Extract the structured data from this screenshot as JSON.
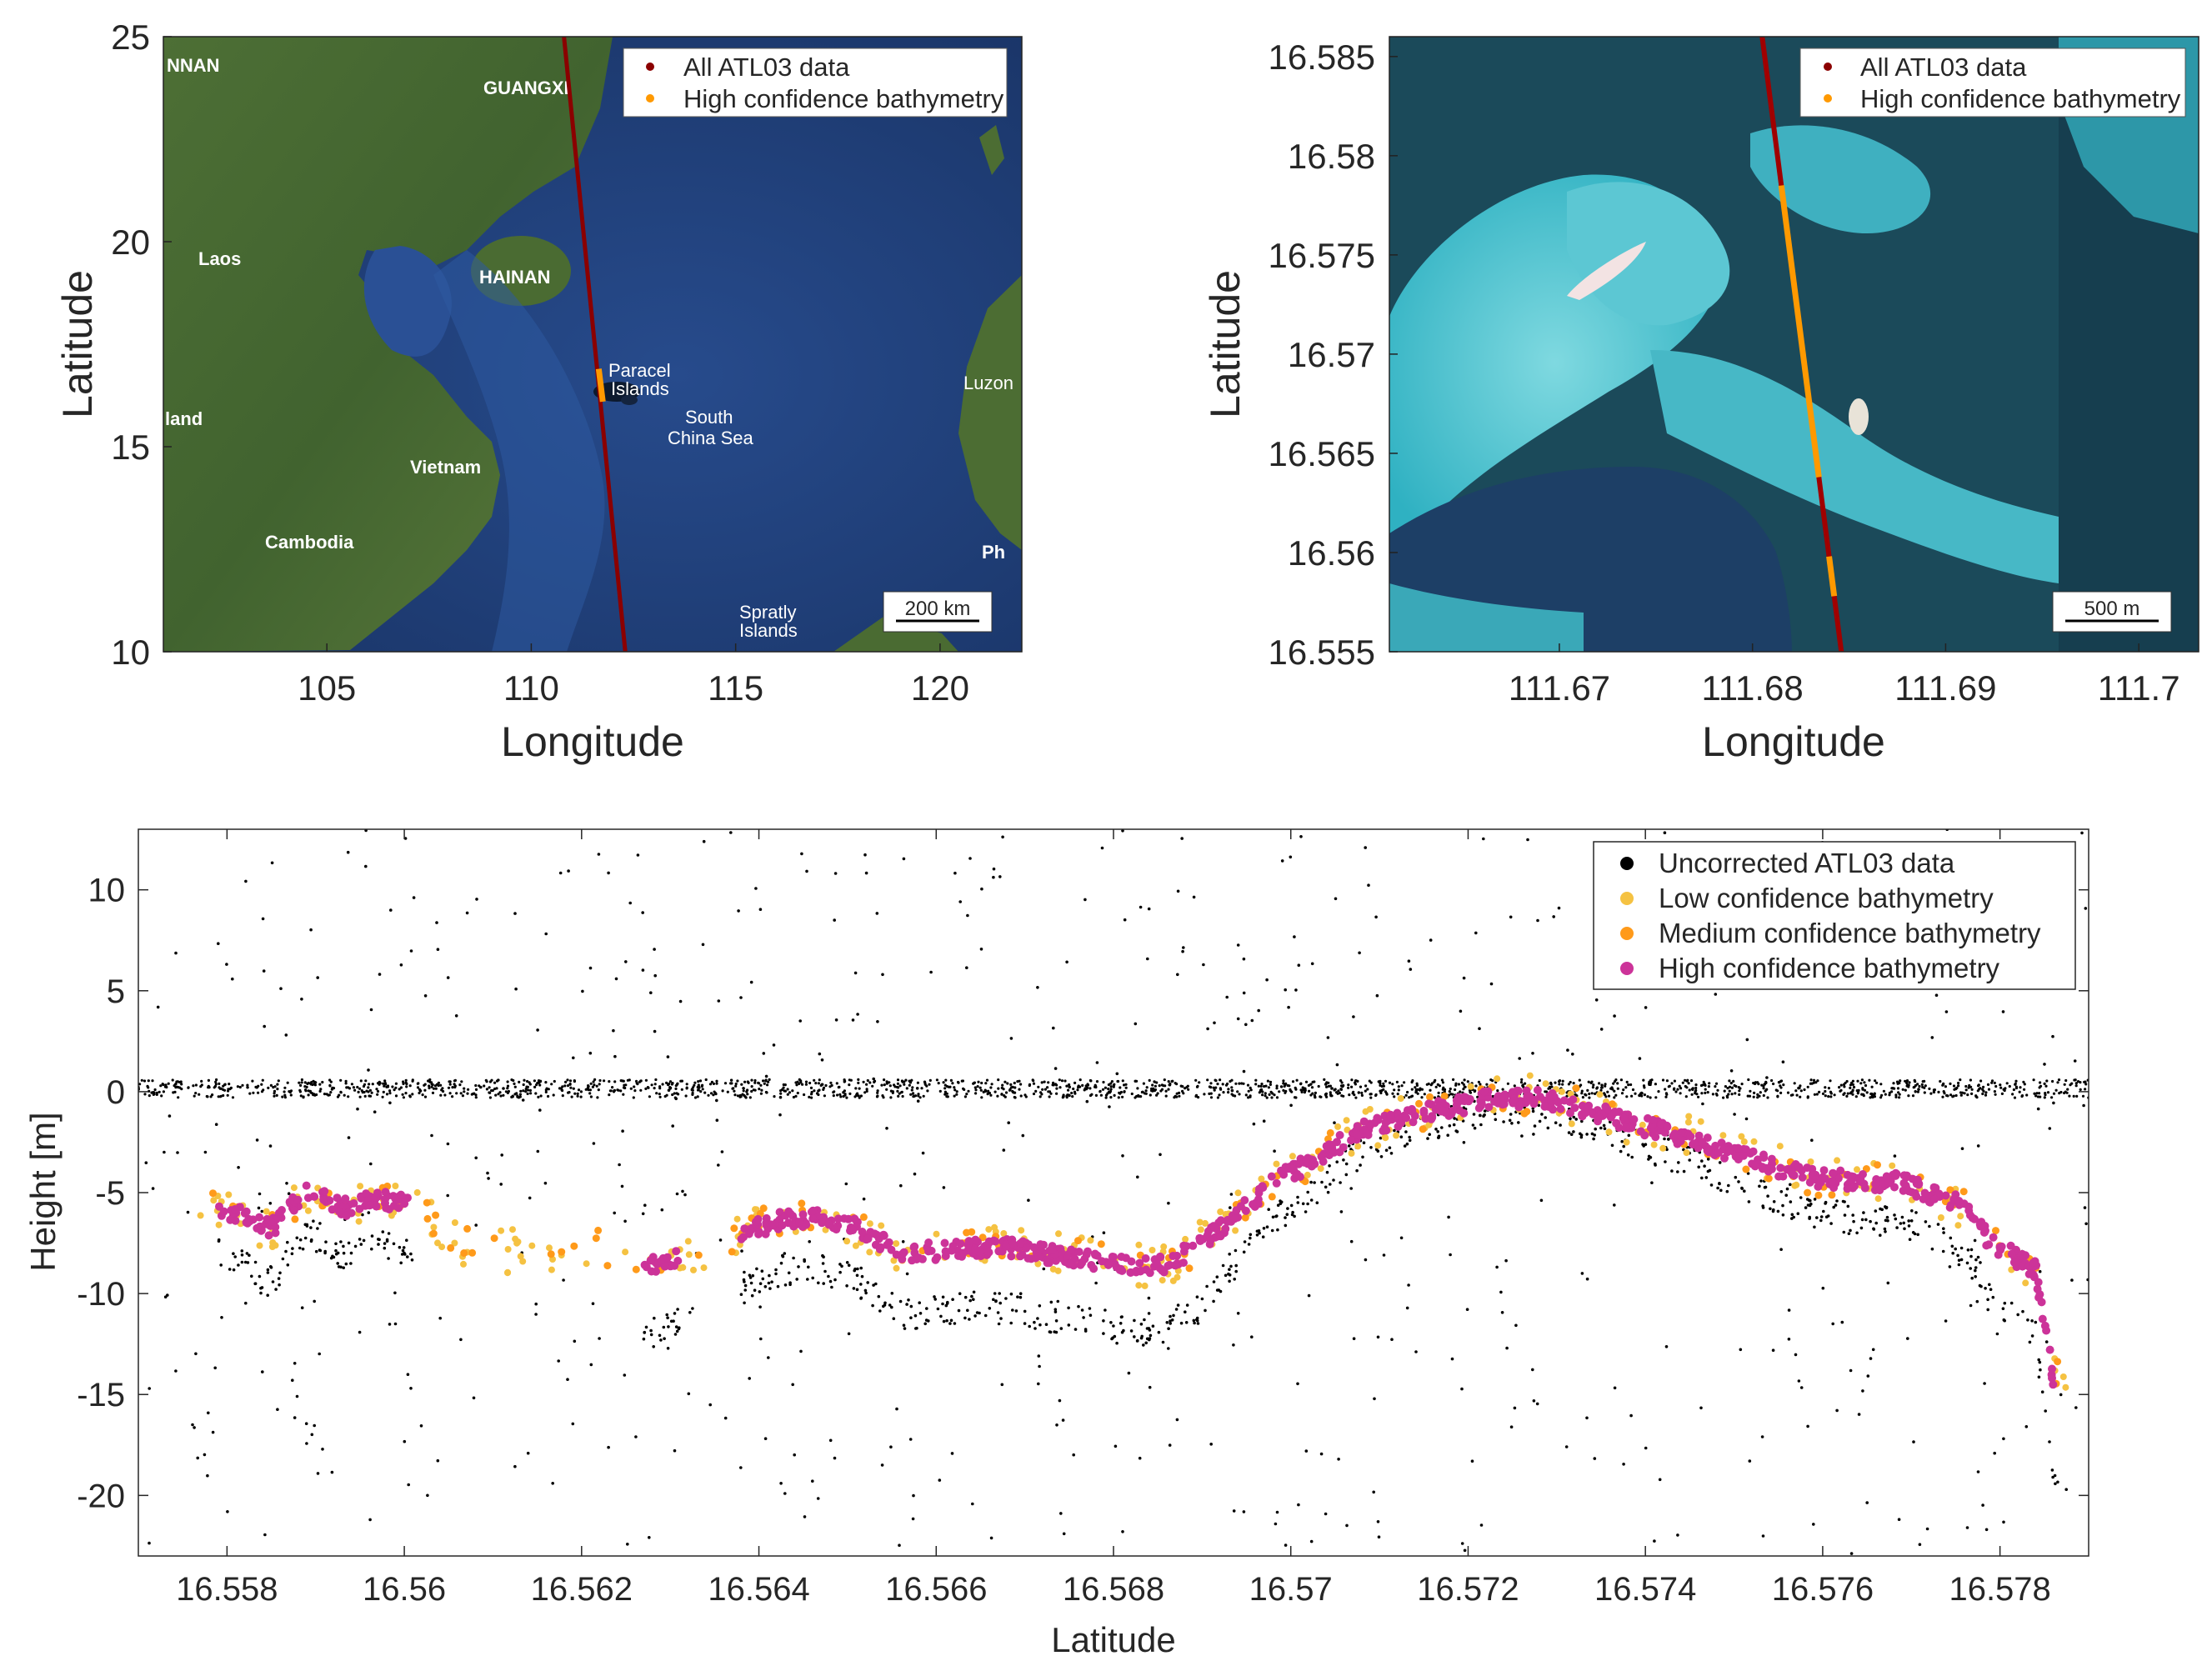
{
  "chart_data": [
    {
      "type": "scatter",
      "panel": "top-left map",
      "xlabel": "Longitude",
      "ylabel": "Latitude",
      "xlim": [
        101,
        122
      ],
      "ylim": [
        10,
        25
      ],
      "x_ticks": [
        "105",
        "110",
        "115",
        "120"
      ],
      "y_ticks": [
        "10",
        "15",
        "20",
        "25"
      ],
      "legend": [
        "All ATL03 data",
        "High confidence bathymetry"
      ],
      "legend_position": "top-right",
      "scale_bar": "200 km",
      "place_labels": [
        "NNAN",
        "GUANGXI",
        "Laos",
        "HAINAN",
        "Paracel",
        "Islands",
        "South",
        "China Sea",
        "Luzon",
        "land",
        "Vietnam",
        "Cambodia",
        "Ph",
        "Spratly",
        "Islands"
      ],
      "series": [
        {
          "name": "All ATL03 data",
          "color": "#8b0000",
          "x": [
            110.8,
            112.3
          ],
          "y": [
            25,
            10
          ]
        },
        {
          "name": "High confidence bathymetry",
          "color": "#ff9900",
          "x": [
            111.65,
            111.75
          ],
          "y": [
            16.9,
            16.1
          ]
        }
      ],
      "background": "satellite imagery"
    },
    {
      "type": "scatter",
      "panel": "top-right map",
      "xlabel": "Longitude",
      "ylabel": "Latitude",
      "xlim": [
        111.6612,
        111.7031
      ],
      "ylim": [
        16.555,
        16.586
      ],
      "x_ticks": [
        "111.67",
        "111.68",
        "111.69",
        "111.7"
      ],
      "y_ticks": [
        "16.555",
        "16.56",
        "16.565",
        "16.57",
        "16.575",
        "16.58",
        "16.585"
      ],
      "legend": [
        "All ATL03 data",
        "High confidence bathymetry"
      ],
      "legend_position": "top-right",
      "scale_bar": "500 m",
      "series": [
        {
          "name": "All ATL03 data",
          "color": "#a00000",
          "x": [
            111.6805,
            111.6846
          ],
          "y": [
            16.586,
            16.555
          ]
        },
        {
          "name": "High confidence bathymetry",
          "color": "#ff9900",
          "segments": [
            [
              16.5785,
              16.5638
            ],
            [
              16.5598,
              16.5578
            ]
          ]
        }
      ],
      "background": "satellite imagery"
    },
    {
      "type": "scatter",
      "panel": "bottom profile",
      "xlabel": "Latitude",
      "ylabel": "Height [m]",
      "xlim": [
        16.557,
        16.579
      ],
      "ylim": [
        -23,
        13
      ],
      "x_ticks": [
        "16.558",
        "16.56",
        "16.562",
        "16.564",
        "16.566",
        "16.568",
        "16.57",
        "16.572",
        "16.574",
        "16.576",
        "16.578"
      ],
      "y_ticks": [
        "10",
        "5",
        "0",
        "-5",
        "-10",
        "-15",
        "-20"
      ],
      "legend": [
        "Uncorrected ATL03 data",
        "Low confidence bathymetry",
        "Medium confidence bathymetry",
        "High confidence bathymetry"
      ],
      "legend_position": "top-right",
      "series": [
        {
          "name": "Uncorrected ATL03 data",
          "color": "#000000",
          "description": "sea surface near 0 m across the track, scattered noise photons from -23 to 13 m, uncorrected seafloor returns below the bathymetry"
        },
        {
          "name": "Low confidence bathymetry",
          "color": "#f5c242"
        },
        {
          "name": "Medium confidence bathymetry",
          "color": "#ff9a1a"
        },
        {
          "name": "High confidence bathymetry",
          "color": "#cc3399",
          "x": [
            16.5579,
            16.5582,
            16.5585,
            16.5589,
            16.5593,
            16.5596,
            16.5601,
            16.5604,
            16.5608,
            16.5617,
            16.5621,
            16.5627,
            16.5637,
            16.5643,
            16.5647,
            16.5651,
            16.5656,
            16.5663,
            16.5667,
            16.5672,
            16.5677,
            16.5682,
            16.5686,
            16.569,
            16.5694,
            16.5698,
            16.5703,
            16.5708,
            16.5713,
            16.5718,
            16.5722,
            16.5727,
            16.5732,
            16.5738,
            16.5745,
            16.5752,
            16.5758,
            16.5763,
            16.5769,
            16.5776,
            16.5779,
            16.5784,
            16.5786
          ],
          "y": [
            -5.8,
            -6.2,
            -6.8,
            -4.8,
            -5.8,
            -5.3,
            -5.6,
            -6.8,
            -7.8,
            -8,
            -7.5,
            -8.8,
            -7.2,
            -6.3,
            -6.3,
            -6.7,
            -8,
            -7.8,
            -7.6,
            -8,
            -8.3,
            -8.6,
            -8.5,
            -7.5,
            -6,
            -4.5,
            -3.3,
            -1.8,
            -1.2,
            -0.8,
            -0.4,
            -0.3,
            -0.7,
            -1.5,
            -2.3,
            -3.3,
            -4.2,
            -4.4,
            -4.5,
            -5.7,
            -7.5,
            -8.8,
            -14.2
          ]
        }
      ]
    }
  ]
}
